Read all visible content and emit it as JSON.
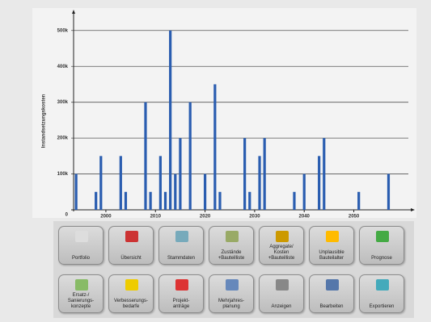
{
  "chart_data": {
    "type": "bar",
    "y_label": "Instandsetzungskosten",
    "x": [
      1994,
      1998,
      1999,
      2003,
      2004,
      2008,
      2009,
      2011,
      2012,
      2013,
      2014,
      2015,
      2017,
      2020,
      2022,
      2023,
      2028,
      2029,
      2031,
      2032,
      2038,
      2040,
      2043,
      2044,
      2051,
      2057
    ],
    "values": [
      100000,
      50000,
      150000,
      150000,
      50000,
      300000,
      50000,
      150000,
      50000,
      500000,
      100000,
      200000,
      300000,
      100000,
      350000,
      50000,
      200000,
      50000,
      150000,
      200000,
      50000,
      100000,
      150000,
      200000,
      50000,
      100000
    ],
    "color": "#2a5db0",
    "xlim": [
      1993,
      2061
    ],
    "xticks": [
      2000,
      2010,
      2020,
      2030,
      2040,
      2050
    ],
    "ylim": [
      0,
      540000
    ],
    "yticks": [
      0,
      {
        "value": 100000,
        "label": "100k"
      },
      {
        "value": 200000,
        "label": "200k"
      },
      {
        "value": 300000,
        "label": "300k"
      },
      {
        "value": 400000,
        "label": "400k"
      },
      {
        "value": 500000,
        "label": "500k"
      }
    ],
    "grid": true
  },
  "toolbar": {
    "rows": [
      [
        "Portfolio",
        "Übersicht",
        "Stammdaten",
        "Zustände\n+Bauteilliste",
        "Aggregate/\nKosten\n+Bauteilliste",
        "Unplausible\nBauteilalter",
        "Prognose"
      ],
      [
        "Ersatz-/\nSanierungs-\nkonzepte",
        "Verbesserungs-\nbedarfe",
        "Projekt-\nanträge",
        "Mehrjahres-\nplanung",
        "Anzeigen",
        "Bearbeiten",
        "Exportieren"
      ]
    ]
  }
}
